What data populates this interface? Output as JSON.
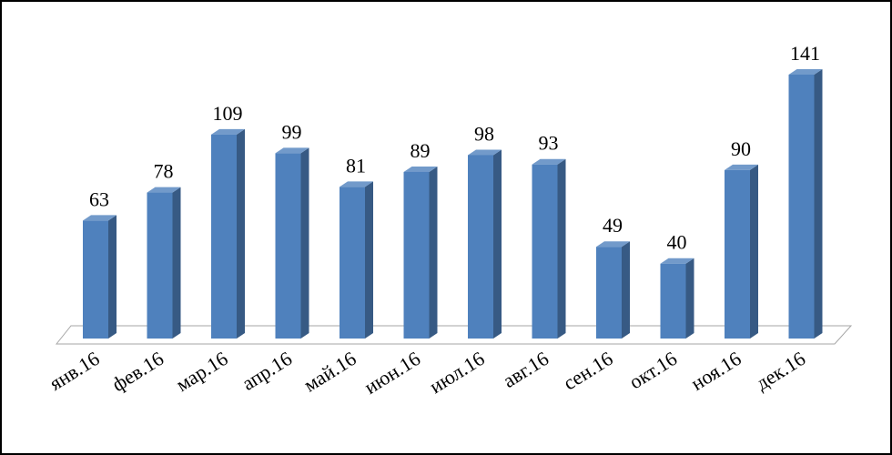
{
  "chart_data": {
    "type": "bar3d",
    "categories": [
      "янв.16",
      "фев.16",
      "мар.16",
      "апр.16",
      "май.16",
      "июн.16",
      "июл.16",
      "авг.16",
      "сен.16",
      "окт.16",
      "ноя.16",
      "дек.16"
    ],
    "values": [
      63,
      78,
      109,
      99,
      81,
      89,
      98,
      93,
      49,
      40,
      90,
      141
    ],
    "color": "#4f81bd"
  }
}
